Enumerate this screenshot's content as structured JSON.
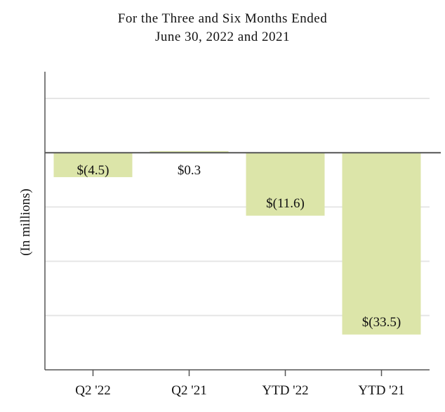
{
  "chart_data": {
    "type": "bar",
    "title_lines": [
      "For the Three and Six Months Ended",
      "June 30, 2022 and 2021"
    ],
    "xlabel": "",
    "ylabel": "(In millions)",
    "categories": [
      "Q2 '22",
      "Q2 '21",
      "YTD '22",
      "YTD '21"
    ],
    "values": [
      -4.5,
      0.3,
      -11.6,
      -33.5
    ],
    "data_labels": [
      "$(4.5)",
      "$0.3",
      "$(11.6)",
      "$(33.5)"
    ],
    "ylim": [
      -40,
      10
    ],
    "grid": true,
    "colors": {
      "bar": "#dce5a9",
      "zero_line": "#555555",
      "grid": "#e6e6e6",
      "axis": "#555555"
    }
  }
}
